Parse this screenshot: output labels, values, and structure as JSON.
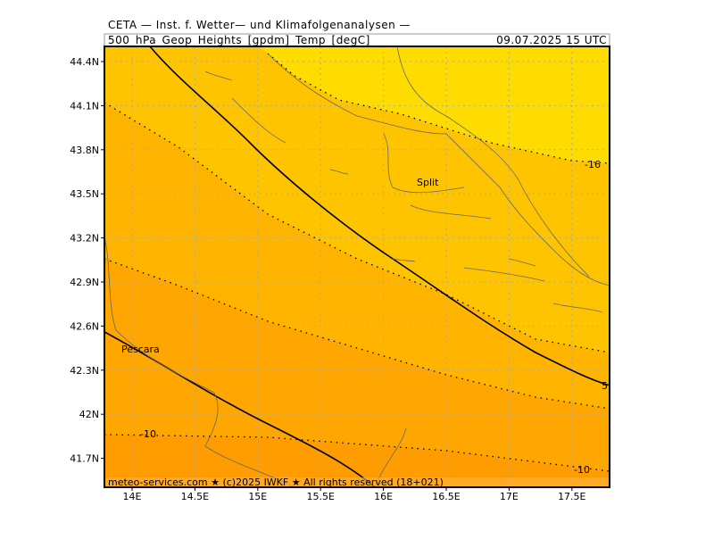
{
  "header": {
    "title": "CETA — Inst. f. Wetter— und Klimafolgenanalysen —",
    "subtitle": "500_hPa_Geop_Heights_[gpdm]_Temp_[degC]",
    "valid_time": "09.07.2025 15 UTC"
  },
  "axes": {
    "x_labels": [
      "14E",
      "14.5E",
      "15E",
      "15.5E",
      "16E",
      "16.5E",
      "17E",
      "17.5E"
    ],
    "y_labels": [
      "44.4N",
      "44.1N",
      "43.8N",
      "43.5N",
      "43.2N",
      "42.9N",
      "42.6N",
      "42.3N",
      "42N",
      "41.7N"
    ]
  },
  "places": [
    "Split",
    "Pescara"
  ],
  "contour_labels": [
    "-16",
    "5",
    "-10",
    "-10"
  ],
  "footer": "meteo-services.com ★ (c)2025 IWKF ★ All rights reserved (18+021)"
}
